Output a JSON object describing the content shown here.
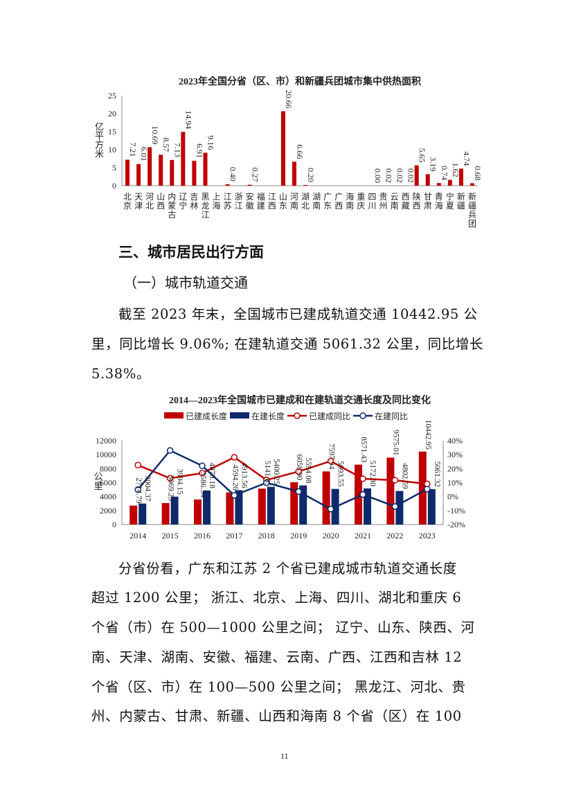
{
  "chart_data": [
    {
      "type": "bar",
      "title": "2023年全国分省（区、市）和新疆兵团城市集中供热面积",
      "ylabel": "亿平方米",
      "ylim": [
        0,
        25
      ],
      "yticks": [
        0,
        5,
        10,
        15,
        20,
        25
      ],
      "color": "#c00000",
      "categories": [
        "北京",
        "天津",
        "河北",
        "山西",
        "内蒙古",
        "辽宁",
        "吉林",
        "黑龙江",
        "上海",
        "江苏",
        "浙江",
        "安徽",
        "福建",
        "江西",
        "山东",
        "河南",
        "湖北",
        "湖南",
        "广东",
        "广西",
        "海南",
        "重庆",
        "四川",
        "贵州",
        "云南",
        "西藏",
        "陕西",
        "甘肃",
        "青海",
        "宁夏",
        "新疆",
        "新疆兵团"
      ],
      "values": [
        7.21,
        6.01,
        10.69,
        8.57,
        7.13,
        14.94,
        6.91,
        9.16,
        null,
        0.4,
        null,
        0.27,
        null,
        null,
        20.66,
        6.66,
        0.2,
        null,
        null,
        null,
        null,
        null,
        0.0,
        0.02,
        0.02,
        0.02,
        5.65,
        3.19,
        0.74,
        1.62,
        4.74,
        0.68
      ],
      "labels": [
        "7.21",
        "6.01",
        "10.69",
        "8.57",
        "7.13",
        "14.94",
        "6.91",
        "9.16",
        "",
        "0.40",
        "",
        "0.27",
        "",
        "",
        "20.66",
        "6.66",
        "0.20",
        "",
        "",
        "",
        "",
        "",
        "0.00",
        "0.02",
        "0.02",
        "0.02",
        "5.65",
        "3.19",
        "0.74",
        "1.62",
        "4.74",
        "0.68"
      ]
    },
    {
      "type": "bar+line",
      "title": "2014—2023年全国城市已建成和在建轨道交通长度及同比变化",
      "ylabel": "公里",
      "ylim": [
        0,
        12000
      ],
      "yticks": [
        0,
        2000,
        4000,
        6000,
        8000,
        10000,
        12000
      ],
      "y2lim": [
        -20,
        40
      ],
      "y2ticks": [
        "-20%",
        "-10%",
        "0%",
        "10%",
        "20%",
        "30%",
        "40%"
      ],
      "legend": "top",
      "categories": [
        "2014",
        "2015",
        "2016",
        "2017",
        "2018",
        "2019",
        "2020",
        "2021",
        "2022",
        "2023"
      ],
      "series": [
        {
          "name": "已建成长度",
          "kind": "bar",
          "color": "#c00000",
          "values": [
            2714.79,
            3069.23,
            3586.34,
            4594.26,
            5141.05,
            6058.9,
            7597.94,
            8571.43,
            9575.01,
            10442.95
          ]
        },
        {
          "name": "在建长度",
          "kind": "bar",
          "color": "#0d2a6b",
          "values": [
            3004.37,
            3994.15,
            4870.18,
            4913.56,
            5400.25,
            5594.08,
            5093.55,
            5172.3,
            4802.59,
            5061.32
          ]
        },
        {
          "name": "已建成同比",
          "kind": "line",
          "color": "#c00000",
          "values": [
            22.5,
            13.1,
            16.8,
            28.1,
            11.9,
            17.9,
            25.4,
            12.8,
            11.7,
            9.06
          ]
        },
        {
          "name": "在建同比",
          "kind": "line",
          "color": "#0d2a6b",
          "values": [
            5.0,
            33.0,
            22.0,
            0.9,
            9.9,
            3.6,
            -8.9,
            1.5,
            -7.1,
            5.38
          ]
        }
      ]
    }
  ],
  "section": {
    "heading": "三、城市居民出行方面",
    "subheading": "（一）城市轨道交通"
  },
  "paragraph1": [
    "截至 2023 年末，全国城市已建成轨道交通 10442.95 公",
    "里，同比增长 9.06%; 在建轨道交通 5061.32 公里，同比增长",
    "5.38%。"
  ],
  "paragraph2": [
    "分省份看，广东和江苏 2 个省已建成城市轨道交通长度",
    "超过 1200 公里； 浙江、北京、上海、四川、湖北和重庆 6",
    "个省（市）在 500—1000 公里之间； 辽宁、山东、陕西、河",
    "南、天津、湖南、安徽、福建、云南、广西、江西和吉林 12",
    "个省（区、市）在 100—500 公里之间； 黑龙江、河北、贵",
    "州、内蒙古、甘肃、新疆、山西和海南 8 个省（区）在 100"
  ],
  "page_number": "11"
}
